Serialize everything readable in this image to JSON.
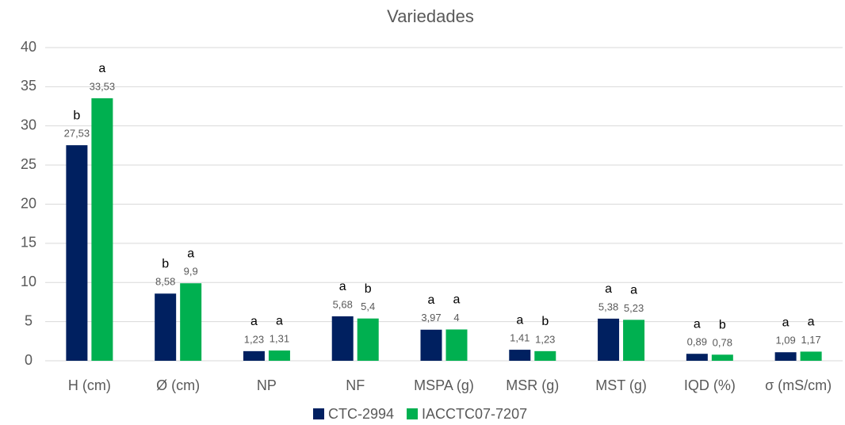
{
  "chart_data": {
    "type": "bar",
    "title": "Variedades",
    "categories": [
      "H (cm)",
      "Ø (cm)",
      "NP",
      "NF",
      "MSPA (g)",
      "MSR (g)",
      "MST (g)",
      "IQD (%)",
      "σ (mS/cm)"
    ],
    "series": [
      {
        "name": "CTC-2994",
        "color": "#002060",
        "values": [
          27.53,
          8.58,
          1.23,
          5.68,
          3.97,
          1.41,
          5.38,
          0.89,
          1.09
        ],
        "value_labels": [
          "27,53",
          "8,58",
          "1,23",
          "5,68",
          "3,97",
          "1,41",
          "5,38",
          "0,89",
          "1,09"
        ],
        "letters": [
          "b",
          "b",
          "a",
          "a",
          "a",
          "a",
          "a",
          "a",
          "a"
        ]
      },
      {
        "name": "IACCTC07-7207",
        "color": "#00b050",
        "values": [
          33.53,
          9.9,
          1.31,
          5.4,
          4,
          1.23,
          5.23,
          0.78,
          1.17
        ],
        "value_labels": [
          "33,53",
          "9,9",
          "1,31",
          "5,4",
          "4",
          "1,23",
          "5,23",
          "0,78",
          "1,17"
        ],
        "letters": [
          "a",
          "a",
          "a",
          "b",
          "a",
          "b",
          "a",
          "b",
          "a"
        ]
      }
    ],
    "ylim": [
      0,
      40
    ],
    "yticks": [
      0,
      5,
      10,
      15,
      20,
      25,
      30,
      35,
      40
    ],
    "grid": true,
    "legend": "bottom"
  }
}
